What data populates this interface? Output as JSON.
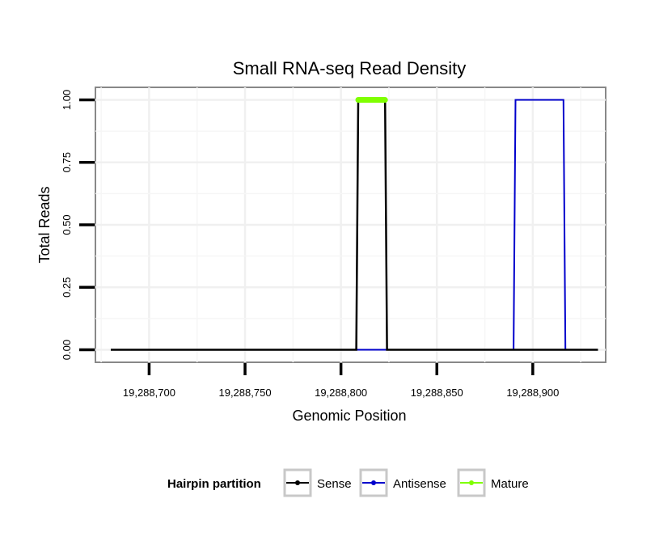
{
  "chart_data": {
    "type": "line",
    "title": "Small RNA-seq Read Density",
    "xlabel": "Genomic Position",
    "ylabel": "Total Reads",
    "xlim": [
      19288672,
      19288938
    ],
    "ylim": [
      -0.05,
      1.05
    ],
    "x_ticks": [
      19288700,
      19288750,
      19288800,
      19288850,
      19288900
    ],
    "x_tick_labels": [
      "19,288,700",
      "19,288,750",
      "19,288,800",
      "19,288,850",
      "19,288,900"
    ],
    "y_ticks": [
      0.0,
      0.25,
      0.5,
      0.75,
      1.0
    ],
    "y_tick_labels": [
      "0.00",
      "0.25",
      "0.50",
      "0.75",
      "1.00"
    ],
    "grid": true,
    "legend_title": "Hairpin partition",
    "legend_position": "bottom",
    "series": [
      {
        "name": "Sense",
        "color": "#000000",
        "x": [
          19288680,
          19288808,
          19288809,
          19288823,
          19288824,
          19288934
        ],
        "y": [
          0,
          0,
          1,
          1,
          0,
          0
        ]
      },
      {
        "name": "Antisense",
        "color": "#0000cc",
        "x": [
          19288808,
          19288824,
          19288825,
          19288890,
          19288891,
          19288916,
          19288917,
          19288934
        ],
        "y": [
          0,
          0,
          0,
          0,
          1,
          1,
          0,
          0
        ]
      },
      {
        "name": "Mature",
        "color": "#7fff00",
        "x": [
          19288809,
          19288810,
          19288811,
          19288812,
          19288813,
          19288814,
          19288815,
          19288816,
          19288817,
          19288818,
          19288819,
          19288820,
          19288821,
          19288822,
          19288823
        ],
        "y": [
          1,
          1,
          1,
          1,
          1,
          1,
          1,
          1,
          1,
          1,
          1,
          1,
          1,
          1,
          1
        ]
      }
    ]
  }
}
